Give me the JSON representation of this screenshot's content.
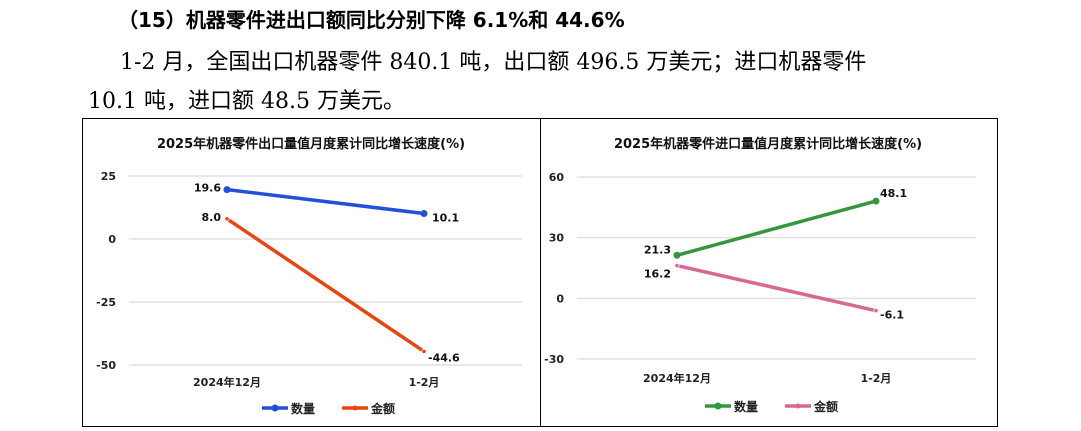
{
  "document": {
    "heading": "（15）机器零件进出口额同比分别下降 6.1%和 44.6%",
    "paragraph_line1": "1-2 月，全国出口机器零件 840.1 吨，出口额 496.5 万美元；进口机器零件",
    "paragraph_line2": "10.1 吨，进口额 48.5 万美元。"
  },
  "chart_data": [
    {
      "type": "line",
      "title": "2025年机器零件出口量值月度累计同比增长速度(%)",
      "categories": [
        "2024年12月",
        "1-2月"
      ],
      "yticks": [
        25,
        0,
        -25,
        -50
      ],
      "ylim": [
        -50,
        25
      ],
      "grid": true,
      "legend_position": "bottom",
      "series": [
        {
          "name": "数量",
          "values": [
            19.6,
            10.1
          ],
          "labels": [
            "19.6",
            "10.1"
          ],
          "color": "#2350d8"
        },
        {
          "name": "金额",
          "values": [
            8.0,
            -44.6
          ],
          "labels": [
            "8.0",
            "-44.6"
          ],
          "color": "#e8450f"
        }
      ]
    },
    {
      "type": "line",
      "title": "2025年机器零件进口量值月度累计同比增长速度(%)",
      "categories": [
        "2024年12月",
        "1-2月"
      ],
      "yticks": [
        60,
        30,
        0,
        -30
      ],
      "ylim": [
        -30,
        60
      ],
      "grid": true,
      "legend_position": "bottom",
      "series": [
        {
          "name": "数量",
          "values": [
            21.3,
            48.1
          ],
          "labels": [
            "21.3",
            "48.1"
          ],
          "color": "#33973f"
        },
        {
          "name": "金额",
          "values": [
            16.2,
            -6.1
          ],
          "labels": [
            "16.2",
            "-6.1"
          ],
          "color": "#d86893"
        }
      ]
    }
  ]
}
